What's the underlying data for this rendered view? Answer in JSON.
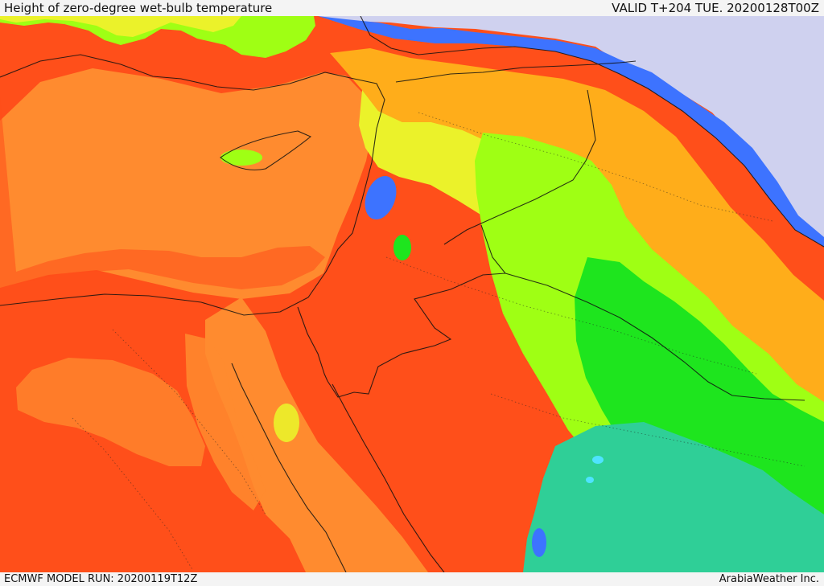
{
  "header": {
    "title": "Height of zero-degree wet-bulb temperature",
    "valid": "VALID T+204 TUE. 20200128T00Z"
  },
  "footer": {
    "model_run": "ECMWF MODEL RUN: 20200119T12Z",
    "credit": "ArabiaWeather Inc."
  },
  "palette": {
    "red": "#ff4f1a",
    "orange": "#ff8b2f",
    "amber": "#ffad1a",
    "yellow": "#ebf22a",
    "lime": "#9fff14",
    "green": "#1ee51e",
    "teal": "#2fcf97",
    "blue": "#3d73ff",
    "violet": "#c9ccee"
  }
}
